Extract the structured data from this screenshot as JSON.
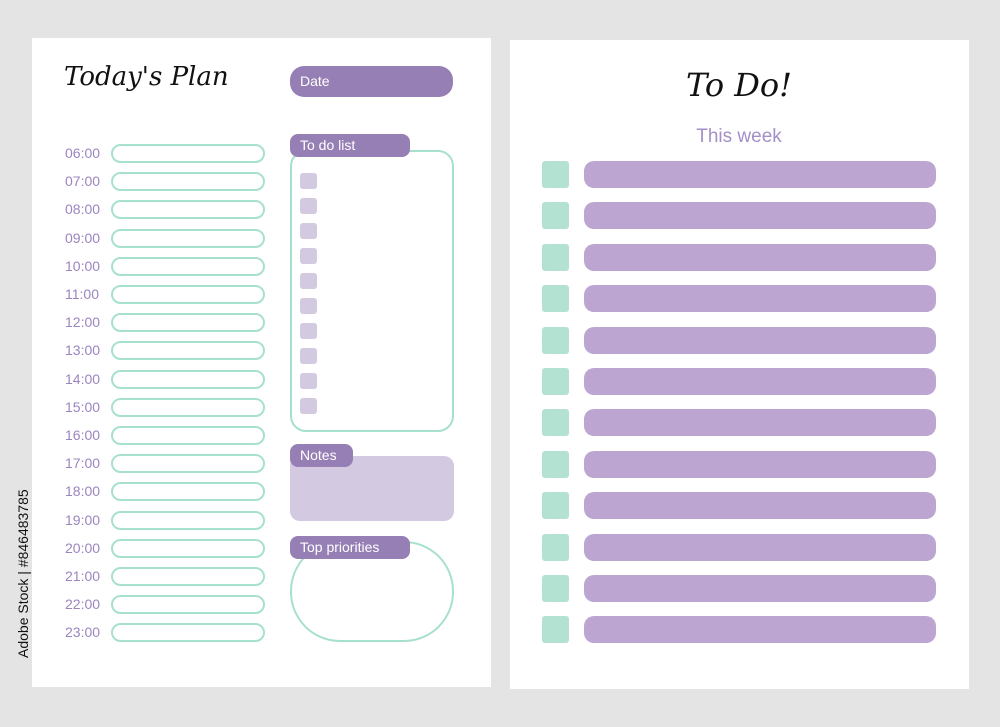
{
  "left_page": {
    "title": "Today's Plan",
    "date_label": "Date",
    "times": [
      "06:00",
      "07:00",
      "08:00",
      "09:00",
      "10:00",
      "11:00",
      "12:00",
      "13:00",
      "14:00",
      "15:00",
      "16:00",
      "17:00",
      "18:00",
      "19:00",
      "20:00",
      "21:00",
      "22:00",
      "23:00"
    ],
    "todo_label": "To do list",
    "todo_checkbox_count": 10,
    "notes_label": "Notes",
    "priorities_label": "Top priorities"
  },
  "right_page": {
    "title": "To Do!",
    "subtitle": "This week",
    "row_count": 12
  },
  "watermark": "Adobe Stock | #846483785",
  "colors": {
    "purple": "#967fb5",
    "light_purple": "#bca6d1",
    "pale_purple": "#d3c9e0",
    "mint": "#a8e0cf",
    "time_text": "#9b85bf"
  }
}
